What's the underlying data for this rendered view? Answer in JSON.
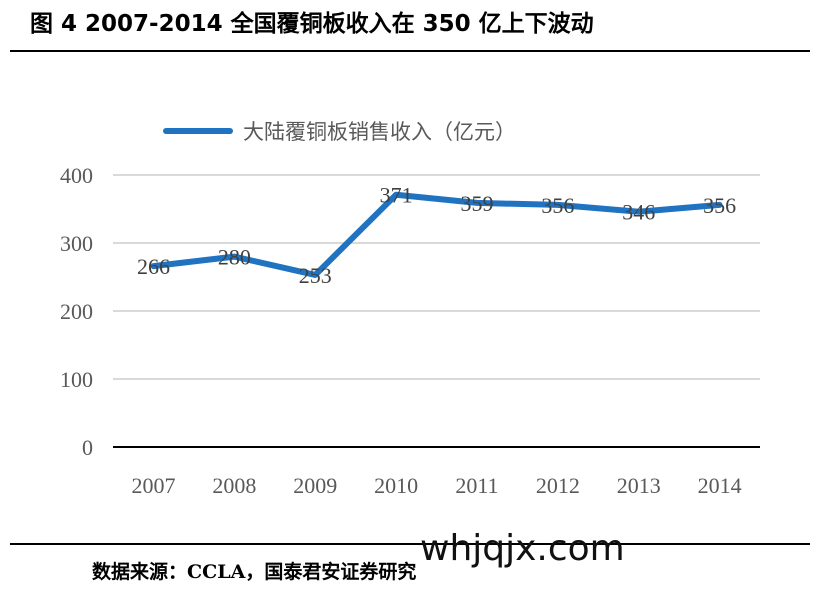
{
  "figure": {
    "title": "图 4 2007-2014 全国覆铜板收入在 350 亿上下波动",
    "source": "数据来源：CCLA，国泰君安证券研究",
    "watermark": "whjqjx.com"
  },
  "chart_data": {
    "type": "line",
    "categories": [
      "2007",
      "2008",
      "2009",
      "2010",
      "2011",
      "2012",
      "2013",
      "2014"
    ],
    "series": [
      {
        "name": "大陆覆铜板销售收入（亿元）",
        "values": [
          266,
          280,
          253,
          371,
          359,
          356,
          346,
          356
        ]
      }
    ],
    "ylim": [
      0,
      400
    ],
    "yticks": [
      0,
      100,
      200,
      300,
      400
    ],
    "grid": true,
    "legend": "top-center",
    "line_color": "#1f73c0",
    "grid_color": "#d9d9d9",
    "axis_color": "#000000"
  }
}
